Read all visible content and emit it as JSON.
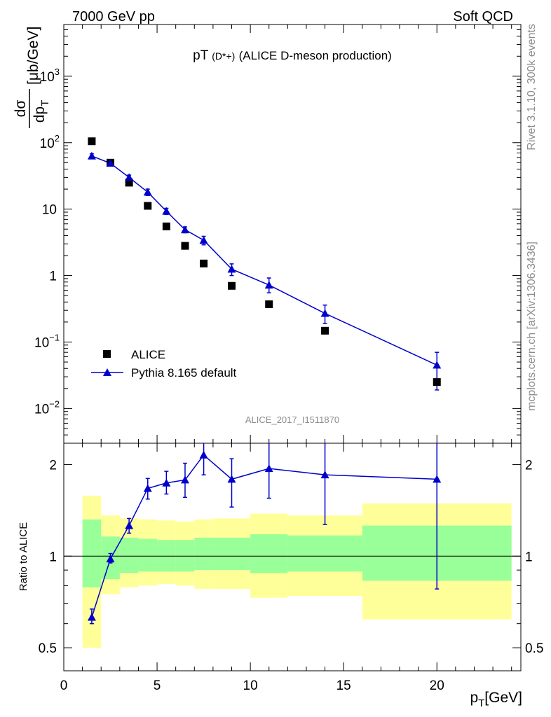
{
  "header": {
    "left": "7000 GeV pp",
    "right": "Soft QCD"
  },
  "side": {
    "rivet": "Rivet 3.1.10,  300k events",
    "mcplots": "mcplots.cern.ch [arXiv:1306.3436]"
  },
  "chart_data": [
    {
      "type": "scatter",
      "title_main": "pT",
      "title_sub": "(D*+)",
      "title_rest": "(ALICE D-meson production)",
      "analysis_id": "ALICE_2017_I1511870",
      "ylabel_num": "dσ",
      "ylabel_den": "dp",
      "ylabel_den_sub": "T",
      "ylabel_unit": "[μb/GeV]",
      "yscale": "log",
      "ylim": [
        0.003,
        6000
      ],
      "xlim": [
        0,
        24.5
      ],
      "yticks": [
        {
          "v": 0.01,
          "base": "10",
          "exp": "−2"
        },
        {
          "v": 0.1,
          "base": "10",
          "exp": "−1"
        },
        {
          "v": 1,
          "base": "1",
          "exp": ""
        },
        {
          "v": 10,
          "base": "10",
          "exp": ""
        },
        {
          "v": 100,
          "base": "10",
          "exp": "2"
        },
        {
          "v": 1000,
          "base": "10",
          "exp": "3"
        }
      ],
      "legend": {
        "placement": "bottom-left",
        "entries": [
          "ALICE",
          "Pythia 8.165 default"
        ]
      },
      "series": [
        {
          "name": "ALICE",
          "color": "#000000",
          "marker": "square",
          "x": [
            1.5,
            2.5,
            3.5,
            4.5,
            5.5,
            6.5,
            7.5,
            9,
            11,
            14,
            20
          ],
          "y": [
            105,
            50,
            25,
            11.2,
            5.5,
            2.8,
            1.52,
            0.7,
            0.37,
            0.148,
            0.025
          ]
        },
        {
          "name": "Pythia 8.165 default",
          "color": "#0000cc",
          "marker": "triangle",
          "x": [
            1.5,
            2.5,
            3.5,
            4.5,
            5.5,
            6.5,
            7.5,
            9,
            11,
            14,
            20
          ],
          "y": [
            63,
            49,
            30,
            18,
            9.3,
            4.9,
            3.4,
            1.25,
            0.72,
            0.27,
            0.045
          ],
          "yerr_low": [
            58,
            46,
            27.5,
            16,
            8.3,
            4.4,
            2.9,
            1.0,
            0.55,
            0.19,
            0.019
          ],
          "yerr_high": [
            68,
            52,
            32.5,
            20,
            10.3,
            5.4,
            3.9,
            1.5,
            0.92,
            0.36,
            0.07
          ]
        }
      ]
    },
    {
      "type": "scatter",
      "ylabel": "Ratio to ALICE",
      "xlabel_main": "p",
      "xlabel_sub": "T",
      "xlabel_unit": "[GeV]",
      "xlim": [
        0,
        24.5
      ],
      "ylim": [
        0.42,
        2.35
      ],
      "xticks": [
        0,
        5,
        10,
        15,
        20
      ],
      "yticks": [
        0.5,
        1,
        2
      ],
      "bands": [
        {
          "x0": 1,
          "x1": 2,
          "yellow": [
            0.5,
            1.58
          ],
          "green": [
            0.79,
            1.32
          ]
        },
        {
          "x0": 2,
          "x1": 3,
          "yellow": [
            0.75,
            1.36
          ],
          "green": [
            0.84,
            1.16
          ]
        },
        {
          "x0": 3,
          "x1": 4,
          "yellow": [
            0.79,
            1.33
          ],
          "green": [
            0.88,
            1.15
          ]
        },
        {
          "x0": 4,
          "x1": 5,
          "yellow": [
            0.8,
            1.32
          ],
          "green": [
            0.89,
            1.14
          ]
        },
        {
          "x0": 5,
          "x1": 6,
          "yellow": [
            0.81,
            1.31
          ],
          "green": [
            0.89,
            1.13
          ]
        },
        {
          "x0": 6,
          "x1": 7,
          "yellow": [
            0.8,
            1.3
          ],
          "green": [
            0.89,
            1.13
          ]
        },
        {
          "x0": 7,
          "x1": 8,
          "yellow": [
            0.78,
            1.32
          ],
          "green": [
            0.9,
            1.15
          ]
        },
        {
          "x0": 8,
          "x1": 10,
          "yellow": [
            0.78,
            1.33
          ],
          "green": [
            0.9,
            1.15
          ]
        },
        {
          "x0": 10,
          "x1": 12,
          "yellow": [
            0.73,
            1.38
          ],
          "green": [
            0.88,
            1.18
          ]
        },
        {
          "x0": 12,
          "x1": 16,
          "yellow": [
            0.74,
            1.36
          ],
          "green": [
            0.89,
            1.17
          ]
        },
        {
          "x0": 16,
          "x1": 24,
          "yellow": [
            0.62,
            1.49
          ],
          "green": [
            0.83,
            1.26
          ]
        }
      ],
      "series": [
        {
          "name": "Pythia 8.165 default",
          "color": "#0000cc",
          "x": [
            1.5,
            2.5,
            3.5,
            4.5,
            5.5,
            6.5,
            7.5,
            9,
            11,
            14,
            20
          ],
          "y": [
            0.63,
            0.98,
            1.26,
            1.67,
            1.74,
            1.78,
            2.15,
            1.79,
            1.94,
            1.85,
            1.79
          ],
          "yerr_low": [
            0.6,
            0.95,
            1.19,
            1.54,
            1.6,
            1.56,
            1.85,
            1.45,
            1.55,
            1.27,
            0.78
          ],
          "yerr_high": [
            0.67,
            1.02,
            1.33,
            1.8,
            1.9,
            2.02,
            2.42,
            2.09,
            2.35,
            2.35,
            2.35
          ]
        }
      ]
    }
  ]
}
